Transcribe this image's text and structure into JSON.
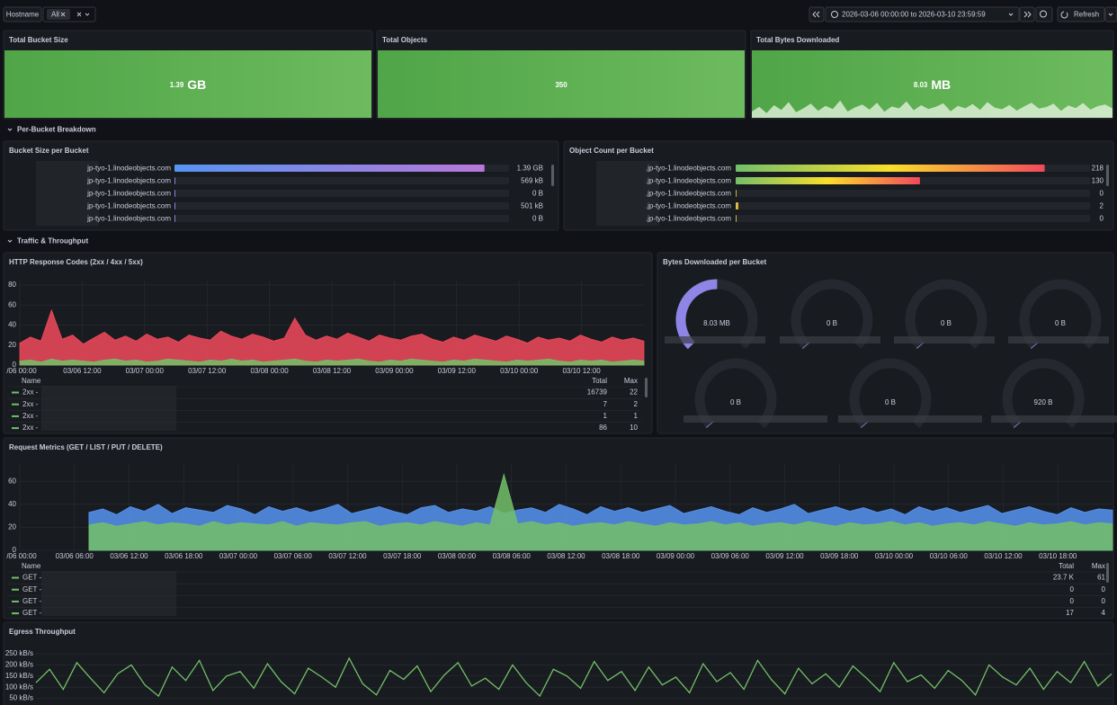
{
  "toolbar": {
    "filter_label": "Hostname",
    "filter_value": "All",
    "time_range": "2026-03-06 00:00:00 to 2026-03-10 23:59:59",
    "refresh": "Refresh"
  },
  "stats": [
    {
      "title": "Total Bucket Size",
      "value": 1.39,
      "unit": "GB"
    },
    {
      "title": "Total Objects",
      "value": 350
    },
    {
      "title": "Total Bytes Downloaded",
      "value": 8.03,
      "unit": "MB",
      "sparkline": {
        "ylim": [
          0,
          100
        ],
        "values": [
          20,
          35,
          15,
          40,
          25,
          50,
          18,
          30,
          45,
          22,
          38,
          28,
          55,
          20,
          33,
          42,
          26,
          48,
          19,
          36,
          30,
          52,
          24,
          40,
          28,
          35,
          46,
          21,
          38,
          30,
          44,
          25,
          50,
          32,
          27,
          41,
          23,
          36,
          48,
          29,
          34,
          45,
          22,
          39,
          31,
          47,
          26,
          37,
          42,
          30
        ]
      }
    }
  ],
  "rows": [
    "Per-Bucket Breakdown",
    "Traffic & Throughput"
  ],
  "bucket_size": {
    "type": "bargauge",
    "title": "Bucket Size per Bucket",
    "categories": [
      "jp-tyo-1.linodeobjects.com",
      "jp-tyo-1.linodeobjects.com",
      "jp-tyo-1.linodeobjects.com",
      "jp-tyo-1.linodeobjects.com",
      "jp-tyo-1.linodeobjects.com"
    ],
    "values": [
      1390000000,
      569000,
      0,
      501000,
      0
    ],
    "value_labels": [
      "1.39 GB",
      "569 kB",
      "0 B",
      "501 kB",
      "0 B"
    ],
    "xlim": [
      0,
      1500000000
    ],
    "colors": [
      "#5794f2",
      "#b877d9"
    ]
  },
  "object_count": {
    "type": "bargauge",
    "title": "Object Count per Bucket",
    "categories": [
      ".jp-tyo-1.linodeobjects.com",
      ".jp-tyo-1.linodeobjects.com",
      ".jp-tyo-1.linodeobjects.com",
      ".jp-tyo-1.linodeobjects.com",
      ".jp-tyo-1.linodeobjects.com"
    ],
    "values": [
      218,
      130,
      0,
      2,
      0
    ],
    "xlim": [
      0,
      250
    ],
    "colors": [
      "#73bf69",
      "#fade2a",
      "#f2495c"
    ]
  },
  "http_codes": {
    "type": "area",
    "title": "HTTP Response Codes (2xx / 4xx / 5xx)",
    "grid": true,
    "xlim": [
      0,
      120
    ],
    "xticks": [
      {
        "value": 0,
        "label": "/06 00:00"
      },
      {
        "value": 12,
        "label": "03/06 12:00"
      },
      {
        "value": 24,
        "label": "03/07 00:00"
      },
      {
        "value": 36,
        "label": "03/07 12:00"
      },
      {
        "value": 48,
        "label": "03/08 00:00"
      },
      {
        "value": 60,
        "label": "03/08 12:00"
      },
      {
        "value": 72,
        "label": "03/09 00:00"
      },
      {
        "value": 84,
        "label": "03/09 12:00"
      },
      {
        "value": 96,
        "label": "03/10 00:00"
      },
      {
        "value": 108,
        "label": "03/10 12:00"
      }
    ],
    "ylim": [
      0,
      84
    ],
    "yticks": [
      0,
      20,
      40,
      60,
      80
    ],
    "series": [
      {
        "color": "#f2495c",
        "values": [
          22,
          28,
          24,
          55,
          26,
          30,
          21,
          27,
          33,
          25,
          29,
          24,
          31,
          26,
          28,
          23,
          30,
          27,
          25,
          34,
          29,
          26,
          31,
          28,
          24,
          27,
          47,
          30,
          25,
          29,
          26,
          32,
          28,
          24,
          30,
          27,
          25,
          29,
          31,
          26,
          23,
          28,
          25,
          30,
          27,
          24,
          29,
          26,
          22,
          28,
          25,
          27,
          24,
          30,
          26,
          23,
          28,
          25,
          27,
          24
        ]
      },
      {
        "color": "#73bf69",
        "values": [
          4,
          5,
          3,
          6,
          4,
          5,
          4,
          3,
          5,
          6,
          4,
          5,
          3,
          4,
          6,
          5,
          4,
          3,
          5,
          4,
          6,
          4,
          5,
          3,
          4,
          5,
          6,
          4,
          3,
          5,
          4,
          5,
          6,
          4,
          3,
          5,
          4,
          6,
          5,
          4,
          3,
          5,
          4,
          6,
          5,
          4,
          3,
          5,
          4,
          5,
          6,
          4,
          3,
          5,
          4,
          5,
          3,
          4,
          5,
          4
        ]
      }
    ],
    "legend": {
      "columns": [
        "Name",
        "Total",
        "Max"
      ],
      "rows": [
        [
          "2xx -",
          16739,
          22
        ],
        [
          "2xx -",
          7,
          2
        ],
        [
          "2xx -",
          1,
          1
        ],
        [
          "2xx -",
          86,
          10
        ]
      ]
    }
  },
  "downloads": {
    "type": "gauge",
    "title": "Bytes Downloaded per Bucket",
    "values": [
      8030000,
      0,
      0,
      0,
      0,
      0,
      920
    ],
    "value_labels": [
      "8.03 MB",
      "0 B",
      "0 B",
      "0 B",
      "0 B",
      "0 B",
      "920 B"
    ],
    "max": 16000000,
    "color": "#8f85e6"
  },
  "requests": {
    "type": "area",
    "title": "Request Metrics (GET / LIST / PUT / DELETE)",
    "grid": true,
    "xlim": [
      0,
      120
    ],
    "xticks": [
      {
        "value": 0,
        "label": "/06 00:00"
      },
      {
        "value": 6,
        "label": "03/06 06:00"
      },
      {
        "value": 12,
        "label": "03/06 12:00"
      },
      {
        "value": 18,
        "label": "03/06 18:00"
      },
      {
        "value": 24,
        "label": "03/07 00:00"
      },
      {
        "value": 30,
        "label": "03/07 06:00"
      },
      {
        "value": 36,
        "label": "03/07 12:00"
      },
      {
        "value": 42,
        "label": "03/07 18:00"
      },
      {
        "value": 48,
        "label": "03/08 00:00"
      },
      {
        "value": 54,
        "label": "03/08 06:00"
      },
      {
        "value": 60,
        "label": "03/08 12:00"
      },
      {
        "value": 66,
        "label": "03/08 18:00"
      },
      {
        "value": 72,
        "label": "03/09 00:00"
      },
      {
        "value": 78,
        "label": "03/09 06:00"
      },
      {
        "value": 84,
        "label": "03/09 12:00"
      },
      {
        "value": 90,
        "label": "03/09 18:00"
      },
      {
        "value": 96,
        "label": "03/10 00:00"
      },
      {
        "value": 102,
        "label": "03/10 06:00"
      },
      {
        "value": 108,
        "label": "03/10 12:00"
      },
      {
        "value": 114,
        "label": "03/10 18:00"
      }
    ],
    "ylim": [
      0,
      75
    ],
    "yticks": [
      0,
      20,
      40,
      60
    ],
    "series": [
      {
        "color": "#5794f2",
        "values": [
          null,
          null,
          null,
          null,
          null,
          33,
          36,
          31,
          38,
          34,
          40,
          32,
          37,
          35,
          33,
          39,
          36,
          31,
          38,
          34,
          37,
          33,
          36,
          40,
          32,
          35,
          38,
          34,
          31,
          37,
          39,
          33,
          36,
          34,
          38,
          32,
          35,
          37,
          33,
          40,
          36,
          31,
          38,
          34,
          37,
          33,
          36,
          39,
          32,
          35,
          38,
          34,
          31,
          37,
          33,
          36,
          40,
          32,
          35,
          38,
          34,
          37,
          33,
          36,
          31,
          38,
          34,
          37,
          33,
          36,
          39,
          32,
          35,
          38,
          34,
          31,
          37,
          33,
          36,
          35
        ]
      },
      {
        "color": "#73bf69",
        "values": [
          null,
          null,
          null,
          null,
          null,
          22,
          24,
          21,
          23,
          25,
          22,
          24,
          23,
          21,
          25,
          22,
          24,
          23,
          22,
          25,
          21,
          24,
          23,
          22,
          24,
          25,
          21,
          23,
          24,
          22,
          25,
          23,
          21,
          24,
          22,
          66,
          23,
          25,
          22,
          24,
          21,
          23,
          24,
          22,
          25,
          23,
          21,
          24,
          22,
          23,
          25,
          22,
          24,
          21,
          23,
          24,
          22,
          25,
          23,
          21,
          24,
          22,
          23,
          25,
          22,
          24,
          21,
          23,
          24,
          22,
          25,
          23,
          21,
          24,
          22,
          23,
          25,
          22,
          24,
          23
        ]
      }
    ],
    "legend": {
      "columns": [
        "Name",
        "Total",
        "Max"
      ],
      "rows": [
        [
          "GET -",
          "23.7 K",
          61
        ],
        [
          "GET -",
          0,
          0
        ],
        [
          "GET -",
          0,
          0
        ],
        [
          "GET -",
          17,
          4
        ]
      ]
    }
  },
  "egress": {
    "type": "line",
    "title": "Egress Throughput",
    "grid": true,
    "ylim": [
      20,
      270
    ],
    "yticks": [
      {
        "value": 250,
        "label": "250 kB/s"
      },
      {
        "value": 200,
        "label": "200 kB/s"
      },
      {
        "value": 150,
        "label": "150 kB/s"
      },
      {
        "value": 100,
        "label": "100 kB/s"
      },
      {
        "value": 50,
        "label": "50 kB/s"
      }
    ],
    "series": [
      {
        "color": "#73bf69",
        "values": [
          120,
          180,
          90,
          210,
          140,
          75,
          160,
          200,
          110,
          60,
          190,
          130,
          220,
          85,
          150,
          170,
          95,
          205,
          125,
          70,
          185,
          145,
          100,
          230,
          115,
          65,
          175,
          135,
          195,
          80,
          155,
          210,
          105,
          140,
          90,
          200,
          120,
          60,
          180,
          150,
          95,
          215,
          130,
          170,
          85,
          190,
          110,
          145,
          75,
          205,
          125,
          165,
          90,
          220,
          135,
          70,
          185,
          115,
          160,
          100,
          195,
          140,
          80,
          210,
          125,
          155,
          95,
          175,
          130,
          65,
          200,
          145,
          110,
          185,
          90,
          170,
          120,
          215,
          105,
          160
        ]
      }
    ]
  }
}
